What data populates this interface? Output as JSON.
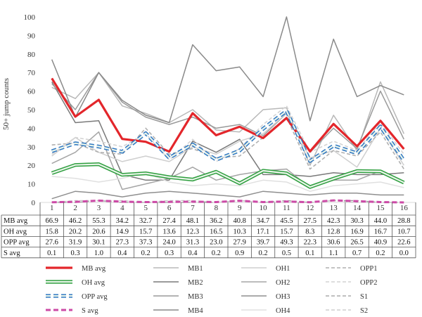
{
  "chart_data": {
    "type": "line",
    "ylabel": "50+ jump counts",
    "ylim": [
      0,
      100
    ],
    "yticks": [
      0,
      10,
      20,
      30,
      40,
      50,
      60,
      70,
      80,
      90,
      100
    ],
    "categories": [
      "1",
      "2",
      "3",
      "4",
      "5",
      "6",
      "7",
      "8",
      "9",
      "10",
      "11",
      "12",
      "13",
      "14",
      "15",
      "16"
    ],
    "grid": false,
    "legend_position": "bottom",
    "series": [
      {
        "name": "MB avg",
        "key": "mbavg",
        "color": "#e3262b",
        "dash": "solid",
        "width": 3.2,
        "values": [
          66.9,
          46.2,
          55.3,
          34.2,
          32.7,
          27.4,
          48.1,
          36.2,
          40.8,
          34.7,
          45.5,
          27.5,
          42.3,
          30.3,
          44.0,
          28.8
        ]
      },
      {
        "name": "OH avg",
        "key": "ohavg",
        "color": "#2e9e3e",
        "dash": "solid",
        "width": 3,
        "halo": true,
        "values": [
          15.8,
          20.2,
          20.6,
          14.9,
          15.7,
          13.6,
          12.3,
          16.5,
          10.3,
          17.1,
          15.7,
          8.3,
          12.8,
          16.9,
          16.7,
          10.7
        ]
      },
      {
        "name": "OPP avg",
        "key": "oppavg",
        "color": "#2f77c2",
        "dash": "dashed",
        "width": 3,
        "halo": true,
        "values": [
          27.6,
          31.9,
          30.1,
          27.3,
          37.3,
          24.0,
          31.3,
          23.0,
          27.9,
          39.7,
          49.3,
          22.3,
          30.6,
          26.5,
          40.9,
          22.6
        ]
      },
      {
        "name": "S avg",
        "key": "savg",
        "color": "#cc4aa6",
        "dash": "dashed",
        "width": 3,
        "values": [
          0.1,
          0.3,
          1.0,
          0.4,
          0.2,
          0.3,
          0.4,
          0.2,
          0.9,
          0.2,
          0.5,
          0.1,
          1.1,
          0.7,
          0.2,
          0.0
        ]
      },
      {
        "name": "MB1",
        "key": "mb1",
        "color": "#b8b8b8",
        "dash": "solid",
        "width": 1.5,
        "values": [
          62,
          56,
          70,
          52,
          48,
          43,
          50,
          39,
          38,
          50,
          51,
          20,
          47,
          28,
          65,
          37
        ]
      },
      {
        "name": "MB2",
        "key": "mb2",
        "color": "#7a7a7a",
        "dash": "solid",
        "width": 1.5,
        "values": [
          65,
          43,
          44,
          15,
          12,
          12,
          33,
          27,
          34,
          15,
          15,
          14,
          16,
          15,
          15,
          16
        ]
      },
      {
        "name": "MB3",
        "key": "mb3",
        "color": "#9a9a9a",
        "dash": "solid",
        "width": 1.5,
        "values": [
          64,
          50,
          70,
          54,
          46,
          42,
          46,
          40,
          42,
          36,
          48,
          27,
          40,
          29,
          60,
          34
        ]
      },
      {
        "name": "MB4",
        "key": "mb4",
        "color": "#8a8a8a",
        "dash": "solid",
        "width": 1.5,
        "values": [
          77,
          46,
          70,
          55,
          47,
          43,
          85,
          71,
          73,
          57,
          100,
          44,
          88,
          57,
          63,
          58
        ]
      },
      {
        "name": "OH1",
        "key": "oh1",
        "color": "#cfcfcf",
        "dash": "solid",
        "width": 1.5,
        "values": [
          25,
          35,
          27,
          22,
          25,
          22,
          30,
          26,
          33,
          37,
          48,
          24,
          28,
          19,
          40,
          20
        ]
      },
      {
        "name": "OH2",
        "key": "oh2",
        "color": "#a5a5a5",
        "dash": "solid",
        "width": 1.5,
        "values": [
          21,
          27,
          38,
          7,
          10,
          13,
          19,
          12,
          15,
          17,
          18,
          8,
          12,
          12,
          17,
          11
        ]
      },
      {
        "name": "OH3",
        "key": "oh3",
        "color": "#8f8f8f",
        "dash": "solid",
        "width": 1.5,
        "values": [
          2,
          6,
          5,
          3,
          5,
          6,
          5,
          4,
          3,
          6,
          5,
          4,
          5,
          5,
          4,
          4
        ]
      },
      {
        "name": "OH4",
        "key": "oh4",
        "color": "#e0e0e0",
        "dash": "solid",
        "width": 1.5,
        "values": [
          14,
          13,
          11,
          13,
          16,
          11,
          9,
          10,
          9,
          12,
          11,
          6,
          9,
          10,
          11,
          8
        ]
      },
      {
        "name": "OPP1",
        "key": "opp1",
        "color": "#b0b0b0",
        "dash": "dashed",
        "width": 1.6,
        "values": [
          31,
          32,
          27,
          26,
          40,
          26,
          29,
          24,
          25,
          35,
          46,
          18,
          28,
          25,
          38,
          18
        ]
      },
      {
        "name": "OPP2",
        "key": "opp2",
        "color": "#d4d4d4",
        "dash": "dashed",
        "width": 1.6,
        "values": [
          26,
          35,
          33,
          30,
          37,
          23,
          34,
          22,
          29,
          42,
          52,
          27,
          33,
          28,
          43,
          26
        ]
      },
      {
        "name": "S1",
        "key": "s1",
        "color": "#9a9a9a",
        "dash": "dashed",
        "width": 1.3,
        "values": [
          0,
          0,
          1,
          0,
          0,
          0,
          0,
          0,
          1,
          0,
          1,
          0,
          1,
          1,
          0,
          0
        ]
      },
      {
        "name": "S2",
        "key": "s2",
        "color": "#c4c4c4",
        "dash": "dashed",
        "width": 1.3,
        "values": [
          0,
          1,
          1,
          1,
          0,
          1,
          1,
          0,
          1,
          0,
          0,
          0,
          1,
          0,
          0,
          0
        ]
      }
    ],
    "table": {
      "rows": [
        {
          "label": "MB avg",
          "values": [
            "66.9",
            "46.2",
            "55.3",
            "34.2",
            "32.7",
            "27.4",
            "48.1",
            "36.2",
            "40.8",
            "34.7",
            "45.5",
            "27.5",
            "42.3",
            "30.3",
            "44.0",
            "28.8"
          ]
        },
        {
          "label": "OH avg",
          "values": [
            "15.8",
            "20.2",
            "20.6",
            "14.9",
            "15.7",
            "13.6",
            "12.3",
            "16.5",
            "10.3",
            "17.1",
            "15.7",
            "8.3",
            "12.8",
            "16.9",
            "16.7",
            "10.7"
          ]
        },
        {
          "label": "OPP avg",
          "values": [
            "27.6",
            "31.9",
            "30.1",
            "27.3",
            "37.3",
            "24.0",
            "31.3",
            "23.0",
            "27.9",
            "39.7",
            "49.3",
            "22.3",
            "30.6",
            "26.5",
            "40.9",
            "22.6"
          ]
        },
        {
          "label": "S avg",
          "values": [
            "0.1",
            "0.3",
            "1.0",
            "0.4",
            "0.2",
            "0.3",
            "0.4",
            "0.2",
            "0.9",
            "0.2",
            "0.5",
            "0.1",
            "1.1",
            "0.7",
            "0.2",
            "0.0"
          ]
        }
      ]
    },
    "legend": [
      [
        "mbavg",
        "mb1",
        "oh1",
        "opp1"
      ],
      [
        "ohavg",
        "mb2",
        "oh2",
        "opp2"
      ],
      [
        "oppavg",
        "mb3",
        "oh3",
        "s1"
      ],
      [
        "savg",
        "mb4",
        "oh4",
        "s2"
      ]
    ]
  }
}
